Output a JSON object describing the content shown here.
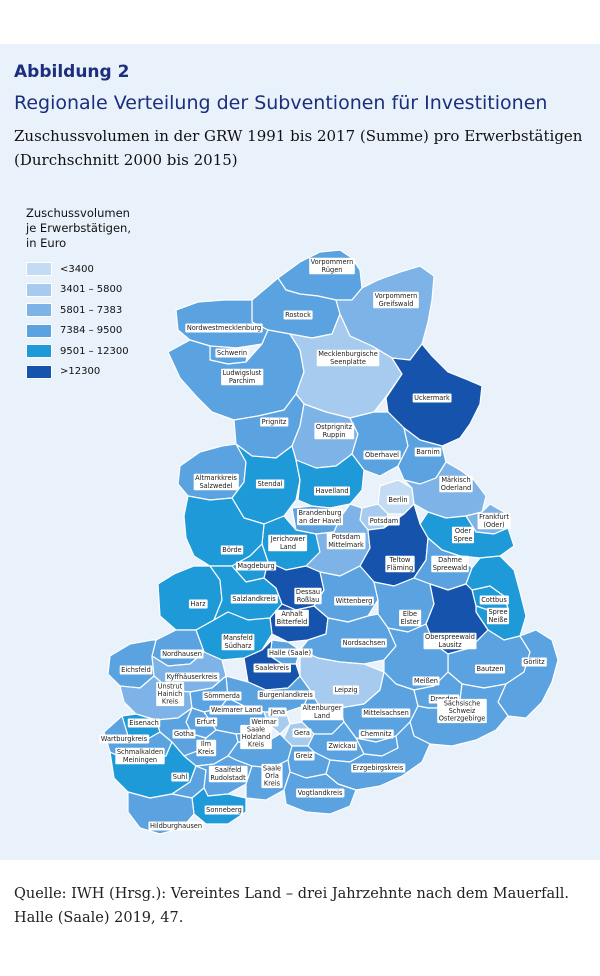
{
  "figure": {
    "label": "Abbildung 2",
    "title": "Regionale Verteilung der Subventionen für Investitionen",
    "subtitle": "Zuschussvolumen in der GRW 1991 bis 2017 (Summe) pro Erwerbstätigen (Durchschnitt 2000 bis 2015)"
  },
  "legend": {
    "title_lines": [
      "Zuschussvolumen",
      "je Erwerbstätigen,",
      "in Euro"
    ],
    "classes": [
      {
        "label": "<3400",
        "color": "#c4dcf3"
      },
      {
        "label": "3401 – 5800",
        "color": "#a7cbee"
      },
      {
        "label": "5801 – 7383",
        "color": "#7db3e6"
      },
      {
        "label": "7384 – 9500",
        "color": "#5aa2e0"
      },
      {
        "label": "9501 – 12300",
        "color": "#1f9ad8"
      },
      {
        "label": ">12300",
        "color": "#1553ad"
      }
    ]
  },
  "regions": [
    {
      "name": "Vorpommern Rügen",
      "lines": [
        "Vorpommern",
        "Rügen"
      ],
      "class": 3
    },
    {
      "name": "Rostock",
      "lines": [
        "Rostock"
      ],
      "class": 3
    },
    {
      "name": "Vorpommern Greifswald",
      "lines": [
        "Vorpommern",
        "Greifswald"
      ],
      "class": 2
    },
    {
      "name": "Nordwestmecklenburg",
      "lines": [
        "Nordwestmecklenburg"
      ],
      "class": 3
    },
    {
      "name": "Schwerin",
      "lines": [
        "Schwerin"
      ],
      "class": 3
    },
    {
      "name": "Ludwigslust Parchim",
      "lines": [
        "Ludwigslust",
        "Parchim"
      ],
      "class": 3
    },
    {
      "name": "Mecklenburgische Seenplatte",
      "lines": [
        "Mecklenburgische",
        "Seenplatte"
      ],
      "class": 1
    },
    {
      "name": "Uckermark",
      "lines": [
        "Uckermark"
      ],
      "class": 5
    },
    {
      "name": "Prignitz",
      "lines": [
        "Prignitz"
      ],
      "class": 3
    },
    {
      "name": "Ostprignitz Ruppin",
      "lines": [
        "Ostprignitz",
        "Ruppin"
      ],
      "class": 2
    },
    {
      "name": "Oberhavel",
      "lines": [
        "Oberhavel"
      ],
      "class": 3
    },
    {
      "name": "Barnim",
      "lines": [
        "Barnim"
      ],
      "class": 3
    },
    {
      "name": "Altmarkkreis Salzwedel",
      "lines": [
        "Altmarkkreis",
        "Salzwedel"
      ],
      "class": 3
    },
    {
      "name": "Stendal",
      "lines": [
        "Stendal"
      ],
      "class": 4
    },
    {
      "name": "Havelland",
      "lines": [
        "Havelland"
      ],
      "class": 4
    },
    {
      "name": "Berlin",
      "lines": [
        "Berlin"
      ],
      "class": 0
    },
    {
      "name": "Märkisch Oderland",
      "lines": [
        "Märkisch",
        "Oderland"
      ],
      "class": 2
    },
    {
      "name": "Brandenburg an der Havel",
      "lines": [
        "Brandenburg",
        "an der Havel"
      ],
      "class": 3
    },
    {
      "name": "Potsdam",
      "lines": [
        "Potsdam"
      ],
      "class": 1
    },
    {
      "name": "Frankfurt (Oder)",
      "lines": [
        "Frankfurt",
        "(Oder)"
      ],
      "class": 2
    },
    {
      "name": "Oder Spree",
      "lines": [
        "Oder",
        "Spree"
      ],
      "class": 4
    },
    {
      "name": "Jerichower Land",
      "lines": [
        "Jerichower",
        "Land"
      ],
      "class": 4
    },
    {
      "name": "Potsdam Mittelmark",
      "lines": [
        "Potsdam",
        "Mittelmark"
      ],
      "class": 2
    },
    {
      "name": "Teltow Fläming",
      "lines": [
        "Teltow",
        "Fläming"
      ],
      "class": 5
    },
    {
      "name": "Dahme Spreewald",
      "lines": [
        "Dahme",
        "Spreewald"
      ],
      "class": 3
    },
    {
      "name": "Börde",
      "lines": [
        "Börde"
      ],
      "class": 4
    },
    {
      "name": "Magdeburg",
      "lines": [
        "Magdeburg"
      ],
      "class": 4
    },
    {
      "name": "Harz",
      "lines": [
        "Harz"
      ],
      "class": 4
    },
    {
      "name": "Salzlandkreis",
      "lines": [
        "Salzlandkreis"
      ],
      "class": 4
    },
    {
      "name": "Dessau Roßlau",
      "lines": [
        "Dessau",
        "Roßlau"
      ],
      "class": 5
    },
    {
      "name": "Wittenberg",
      "lines": [
        "Wittenberg"
      ],
      "class": 3
    },
    {
      "name": "Cottbus",
      "lines": [
        "Cottbus"
      ],
      "class": 4
    },
    {
      "name": "Spree Neiße",
      "lines": [
        "Spree",
        "Neiße"
      ],
      "class": 4
    },
    {
      "name": "Anhalt Bitterfeld",
      "lines": [
        "Anhalt",
        "Bitterfeld"
      ],
      "class": 5
    },
    {
      "name": "Elbe Elster",
      "lines": [
        "Elbe",
        "Elster"
      ],
      "class": 3
    },
    {
      "name": "Oberspreewald Lausitz",
      "lines": [
        "Oberspreewald",
        "Lausitz"
      ],
      "class": 5
    },
    {
      "name": "Mansfeld Südharz",
      "lines": [
        "Mansfeld",
        "Südharz"
      ],
      "class": 4
    },
    {
      "name": "Halle (Saale)",
      "lines": [
        "Halle (Saale)"
      ],
      "class": 3
    },
    {
      "name": "Nordsachsen",
      "lines": [
        "Nordsachsen"
      ],
      "class": 3
    },
    {
      "name": "Nordhausen",
      "lines": [
        "Nordhausen"
      ],
      "class": 3
    },
    {
      "name": "Saalekreis",
      "lines": [
        "Saalekreis"
      ],
      "class": 5
    },
    {
      "name": "Eichsfeld",
      "lines": [
        "Eichsfeld"
      ],
      "class": 3
    },
    {
      "name": "Kyffhäuserkreis",
      "lines": [
        "Kyffhäuserkreis"
      ],
      "class": 2
    },
    {
      "name": "Bautzen",
      "lines": [
        "Bautzen"
      ],
      "class": 3
    },
    {
      "name": "Görlitz",
      "lines": [
        "Görlitz"
      ],
      "class": 3
    },
    {
      "name": "Meißen",
      "lines": [
        "Meißen"
      ],
      "class": 3
    },
    {
      "name": "Burgenlandkreis",
      "lines": [
        "Burgenlandkreis"
      ],
      "class": 3
    },
    {
      "name": "Leipzig",
      "lines": [
        "Leipzig"
      ],
      "class": 1
    },
    {
      "name": "Unstrut Hainich Kreis",
      "lines": [
        "Unstrut",
        "Hainich",
        "Kreis"
      ],
      "class": 2
    },
    {
      "name": "Sömmerda",
      "lines": [
        "Sömmerda"
      ],
      "class": 3
    },
    {
      "name": "Weimarer Land",
      "lines": [
        "Weimarer Land"
      ],
      "class": 3
    },
    {
      "name": "Jena",
      "lines": [
        "Jena"
      ],
      "class": 1
    },
    {
      "name": "Altenburger Land",
      "lines": [
        "Altenburger",
        "Land"
      ],
      "class": 3
    },
    {
      "name": "Mittelsachsen",
      "lines": [
        "Mittelsachsen"
      ],
      "class": 3
    },
    {
      "name": "Dresden",
      "lines": [
        "Dresden"
      ],
      "class": 3
    },
    {
      "name": "Sächsische Schweiz Osterzgebirge",
      "lines": [
        "Sächsische",
        "Schweiz",
        "Osterzgebirge"
      ],
      "class": 3
    },
    {
      "name": "Eisenach",
      "lines": [
        "Eisenach"
      ],
      "class": 4
    },
    {
      "name": "Erfurt",
      "lines": [
        "Erfurt"
      ],
      "class": 3
    },
    {
      "name": "Weimar",
      "lines": [
        "Weimar"
      ],
      "class": 3
    },
    {
      "name": "Gera",
      "lines": [
        "Gera"
      ],
      "class": 1
    },
    {
      "name": "Chemnitz",
      "lines": [
        "Chemnitz"
      ],
      "class": 3
    },
    {
      "name": "Wartburgkreis",
      "lines": [
        "Wartburgkreis"
      ],
      "class": 3
    },
    {
      "name": "Gotha",
      "lines": [
        "Gotha"
      ],
      "class": 3
    },
    {
      "name": "Ilm Kreis",
      "lines": [
        "Ilm",
        "Kreis"
      ],
      "class": 3
    },
    {
      "name": "Saale Holzland Kreis",
      "lines": [
        "Saale",
        "Holzland",
        "Kreis"
      ],
      "class": 3
    },
    {
      "name": "Zwickau",
      "lines": [
        "Zwickau"
      ],
      "class": 3
    },
    {
      "name": "Schmalkalden Meiningen",
      "lines": [
        "Schmalkalden",
        "Meiningen"
      ],
      "class": 4
    },
    {
      "name": "Greiz",
      "lines": [
        "Greiz"
      ],
      "class": 3
    },
    {
      "name": "Erzgebirgskreis",
      "lines": [
        "Erzgebirgskreis"
      ],
      "class": 3
    },
    {
      "name": "Suhl",
      "lines": [
        "Suhl"
      ],
      "class": 3
    },
    {
      "name": "Saalfeld Rudolstadt",
      "lines": [
        "Saalfeld",
        "Rudolstadt"
      ],
      "class": 3
    },
    {
      "name": "Saale Orla Kreis",
      "lines": [
        "Saale",
        "Orla",
        "Kreis"
      ],
      "class": 3
    },
    {
      "name": "Vogtlandkreis",
      "lines": [
        "Vogtlandkreis"
      ],
      "class": 3
    },
    {
      "name": "Sonneberg",
      "lines": [
        "Sonneberg"
      ],
      "class": 4
    },
    {
      "name": "Hildburghausen",
      "lines": [
        "Hildburghausen"
      ],
      "class": 3
    }
  ],
  "source": "Quelle: IWH (Hrsg.): Vereintes Land – drei Jahrzehnte nach dem Mauerfall. Halle (Saale) 2019, 47."
}
